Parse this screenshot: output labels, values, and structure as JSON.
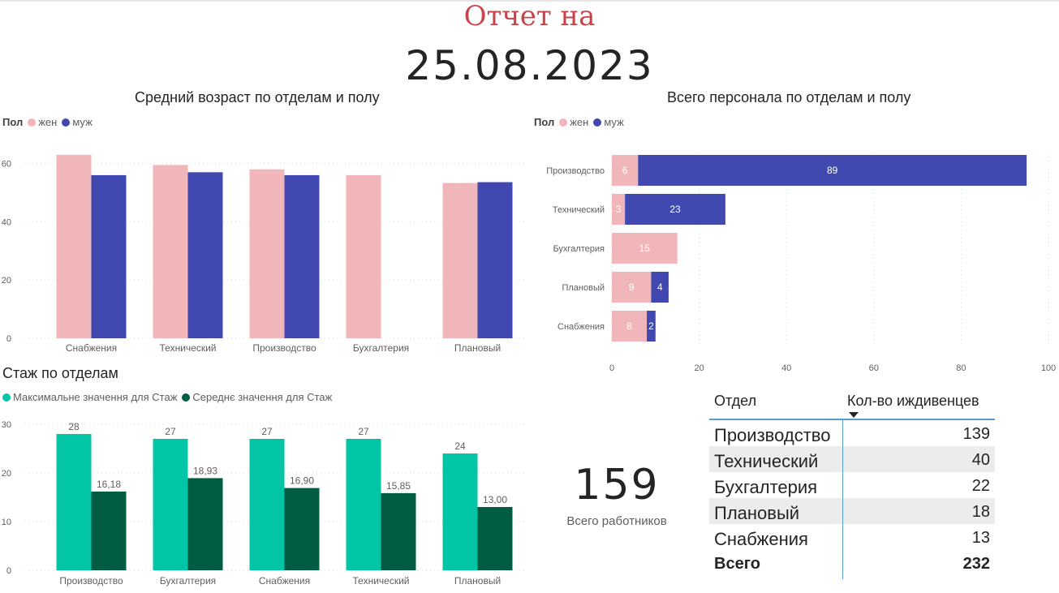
{
  "report": {
    "title": "Отчет на",
    "date": "25.08.2023"
  },
  "colors": {
    "female": "#f0b6ba",
    "male": "#4149b1",
    "max_stazh": "#01c5a4",
    "avg_stazh": "#005d43"
  },
  "age_chart": {
    "title": "Средний возраст по отделам и полу",
    "legend_title": "Пол",
    "legend": [
      "жен",
      "муж"
    ]
  },
  "staff_chart": {
    "title": "Всего персонала по отделам и полу",
    "legend_title": "Пол",
    "legend": [
      "жен",
      "муж"
    ]
  },
  "stazh_chart": {
    "title": "Стаж по отделам",
    "legend": [
      "Максимальне значення для Стаж",
      "Середнє значення для Стаж"
    ]
  },
  "kpi": {
    "value": "159",
    "label": "Всего работников"
  },
  "table": {
    "headers": [
      "Отдел",
      "Кол-во иждивенцев"
    ],
    "rows": [
      {
        "dept": "Производство",
        "value": "139"
      },
      {
        "dept": "Технический",
        "value": "40"
      },
      {
        "dept": "Бухгалтерия",
        "value": "22"
      },
      {
        "dept": "Плановый",
        "value": "18"
      },
      {
        "dept": "Снабжения",
        "value": "13"
      }
    ],
    "total": {
      "dept": "Всего",
      "value": "232"
    }
  },
  "chart_data": [
    {
      "type": "bar",
      "title": "Средний возраст по отделам и полу",
      "categories": [
        "Снабжения",
        "Технический",
        "Производство",
        "Бухгалтерия",
        "Плановый"
      ],
      "series": [
        {
          "name": "жен",
          "values": [
            63,
            59.5,
            58,
            56,
            53.3
          ]
        },
        {
          "name": "муж",
          "values": [
            56,
            57,
            56,
            null,
            53.6
          ]
        }
      ],
      "yticks": [
        0,
        20,
        40,
        60
      ],
      "ylim": [
        0,
        66
      ],
      "grid": true,
      "legend_position": "top-left"
    },
    {
      "type": "bar",
      "orientation": "horizontal",
      "stacked": true,
      "title": "Всего персонала по отделам и полу",
      "categories": [
        "Производство",
        "Технический",
        "Бухгалтерия",
        "Плановый",
        "Снабжения"
      ],
      "series": [
        {
          "name": "жен",
          "values": [
            6,
            3,
            15,
            9,
            8
          ]
        },
        {
          "name": "муж",
          "values": [
            89,
            23,
            null,
            4,
            2
          ]
        }
      ],
      "xticks": [
        0,
        20,
        40,
        60,
        80,
        100
      ],
      "xlim": [
        0,
        100
      ],
      "grid": true,
      "legend_position": "top-left"
    },
    {
      "type": "bar",
      "title": "Стаж по отделам",
      "categories": [
        "Производство",
        "Бухгалтерия",
        "Снабжения",
        "Технический",
        "Плановый"
      ],
      "series": [
        {
          "name": "Максимальне значення для Стаж",
          "values": [
            28,
            27,
            27,
            27,
            24
          ],
          "labels": [
            "28",
            "27",
            "27",
            "27",
            "24"
          ]
        },
        {
          "name": "Середнє значення для Стаж",
          "values": [
            16.18,
            18.93,
            16.9,
            15.85,
            13.0
          ],
          "labels": [
            "16,18",
            "18,93",
            "16,90",
            "15,85",
            "13,00"
          ]
        }
      ],
      "yticks": [
        0,
        10,
        20,
        30
      ],
      "ylim": [
        0,
        30
      ],
      "grid": true,
      "legend_position": "top-left"
    }
  ]
}
